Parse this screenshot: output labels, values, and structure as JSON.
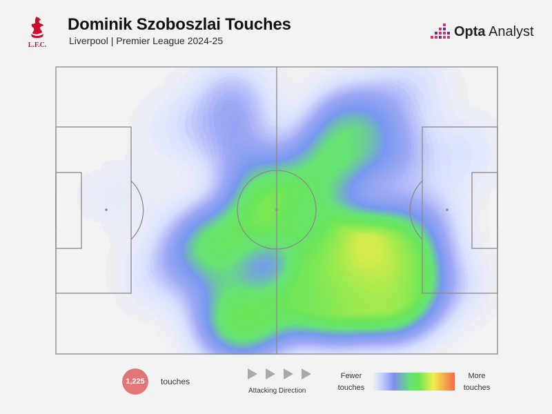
{
  "header": {
    "title": "Dominik Szoboszlai Touches",
    "subtitle": "Liverpool | Premier League 2024-25",
    "club_logo_text": "L.F.C.",
    "brand_bold": "Opta",
    "brand_light": " Analyst"
  },
  "footer": {
    "touch_count": "1,225",
    "touch_label": "touches",
    "direction_label": "Attacking Direction",
    "scale_low": [
      "Fewer",
      "touches"
    ],
    "scale_high": [
      "More",
      "touches"
    ]
  },
  "colors": {
    "background": "#f3f3f3",
    "lines": "#8a8a8a",
    "badge": "#e27579",
    "lfc_red": "#c8102e",
    "opta_pink": "#d1356b",
    "opta_purple": "#6a2c91",
    "heat_scale": [
      "#f3f3f3",
      "#b9c4ff",
      "#7f8df0",
      "#66e276",
      "#6ae558",
      "#f2ee4e",
      "#f36a4a"
    ]
  },
  "chart_data": {
    "type": "heatmap",
    "title": "Dominik Szoboszlai Touches",
    "subtitle": "Liverpool | Premier League 2024-25",
    "total_touches": 1225,
    "attacking_direction": "left-to-right",
    "x_range": [
      0,
      100
    ],
    "y_range": [
      0,
      100
    ],
    "x_axis": "pitch length (own goal to opposition goal)",
    "y_axis": "pitch width (top touchline to bottom touchline)",
    "hotspots": [
      {
        "x": 72,
        "y": 70,
        "intensity": 1.0
      },
      {
        "x": 66,
        "y": 67,
        "intensity": 0.8
      },
      {
        "x": 63,
        "y": 80,
        "intensity": 0.7
      },
      {
        "x": 76,
        "y": 80,
        "intensity": 0.65
      },
      {
        "x": 57,
        "y": 80,
        "intensity": 0.55
      },
      {
        "x": 50,
        "y": 50,
        "intensity": 0.65
      },
      {
        "x": 42,
        "y": 88,
        "intensity": 0.6
      },
      {
        "x": 36,
        "y": 62,
        "intensity": 0.55
      },
      {
        "x": 62,
        "y": 33,
        "intensity": 0.5
      },
      {
        "x": 67,
        "y": 20,
        "intensity": 0.45
      },
      {
        "x": 75,
        "y": 30,
        "intensity": 0.35
      },
      {
        "x": 82,
        "y": 55,
        "intensity": 0.35
      },
      {
        "x": 58,
        "y": 55,
        "intensity": 0.4
      },
      {
        "x": 40,
        "y": 12,
        "intensity": 0.3
      },
      {
        "x": 42,
        "y": 30,
        "intensity": 0.3
      },
      {
        "x": 88,
        "y": 75,
        "intensity": 0.25
      },
      {
        "x": 92,
        "y": 30,
        "intensity": 0.18
      },
      {
        "x": 28,
        "y": 22,
        "intensity": 0.18
      },
      {
        "x": 14,
        "y": 45,
        "intensity": 0.12
      },
      {
        "x": 24,
        "y": 72,
        "intensity": 0.2
      },
      {
        "x": 80,
        "y": 8,
        "intensity": 0.2
      }
    ]
  }
}
